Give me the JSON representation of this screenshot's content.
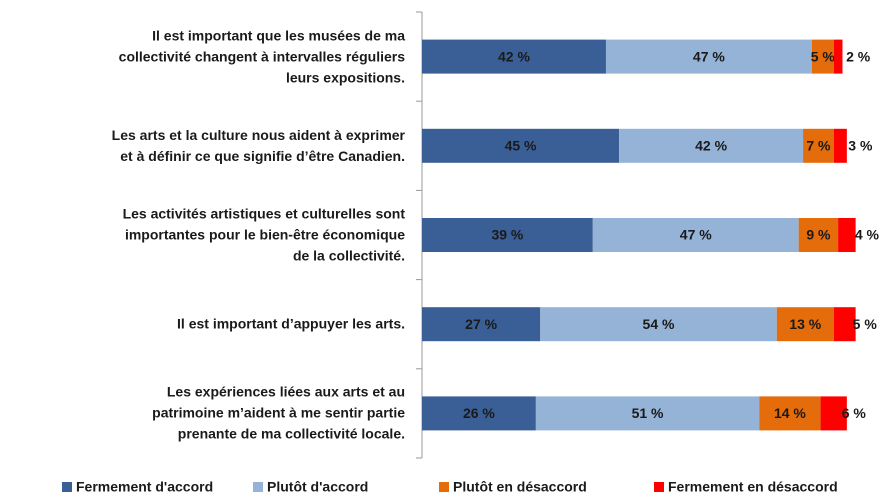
{
  "chart_data": {
    "type": "stacked-bar-horizontal",
    "categories": [
      "Il est important que les musées de ma\ncollectivité changent à intervalles réguliers\nleurs expositions.",
      "Les arts et la culture nous aident à exprimer\net à définir ce que signifie d’être Canadien.",
      "Les activités artistiques et culturelles sont\nimportantes pour le bien-être économique\nde la collectivité.",
      "Il est important d’appuyer les arts.",
      "Les expériences liées aux arts et au\npatrimoine m’aident à me sentir partie\nprenante de ma collectivité locale."
    ],
    "series": [
      {
        "name": "Fermement d'accord",
        "color": "#3a5f96",
        "values": [
          42,
          45,
          39,
          27,
          26
        ],
        "value_labels": [
          "42 %",
          "45 %",
          "39 %",
          "27 %",
          "26 %"
        ]
      },
      {
        "name": "Plutôt d'accord",
        "color": "#95b3d7",
        "values": [
          47,
          42,
          47,
          54,
          51
        ],
        "value_labels": [
          "47 %",
          "42 %",
          "47 %",
          "54 %",
          "51 %"
        ]
      },
      {
        "name": "Plutôt en désaccord",
        "color": "#e46c0a",
        "values": [
          5,
          7,
          9,
          13,
          14
        ],
        "value_labels": [
          "5 %",
          "7 %",
          "9 %",
          "13 %",
          "14 %"
        ]
      },
      {
        "name": "Fermement en désaccord",
        "color": "#ff0000",
        "values": [
          2,
          3,
          4,
          5,
          6
        ],
        "value_labels": [
          "2 %",
          "3 %",
          "4 %",
          "5 %",
          "6 %"
        ]
      }
    ],
    "xlim": [
      0,
      100
    ]
  }
}
